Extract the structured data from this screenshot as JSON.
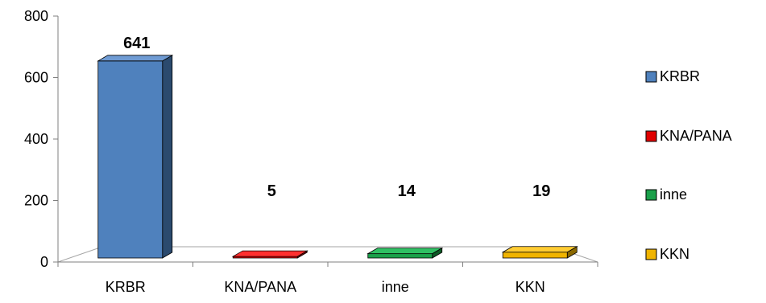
{
  "chart_data": {
    "type": "bar",
    "title": "",
    "xlabel": "",
    "ylabel": "",
    "categories": [
      "KRBR",
      "KNA/PANA",
      "inne",
      "KKN"
    ],
    "values": [
      641,
      5,
      14,
      19
    ],
    "data_labels": [
      "641",
      "5",
      "14",
      "19"
    ],
    "ylim": [
      0,
      800
    ],
    "yticks": [
      0,
      200,
      400,
      600,
      800
    ],
    "ytick_labels": [
      "0",
      "200",
      "400",
      "600",
      "800"
    ],
    "grid": false,
    "legend": {
      "placement": "right",
      "entries": [
        "KRBR",
        "KNA/PANA",
        "inne",
        "KKN"
      ]
    },
    "colors": [
      "#4f81bd",
      "#e00000",
      "#1aa04a",
      "#f0b400"
    ],
    "side_colors": [
      "#2b4a6e",
      "#800000",
      "#0d5a27",
      "#8a6800"
    ],
    "top_colors": [
      "#6f9bd3",
      "#ff3030",
      "#2fc063",
      "#ffcc33"
    ],
    "style": "3d-column"
  }
}
